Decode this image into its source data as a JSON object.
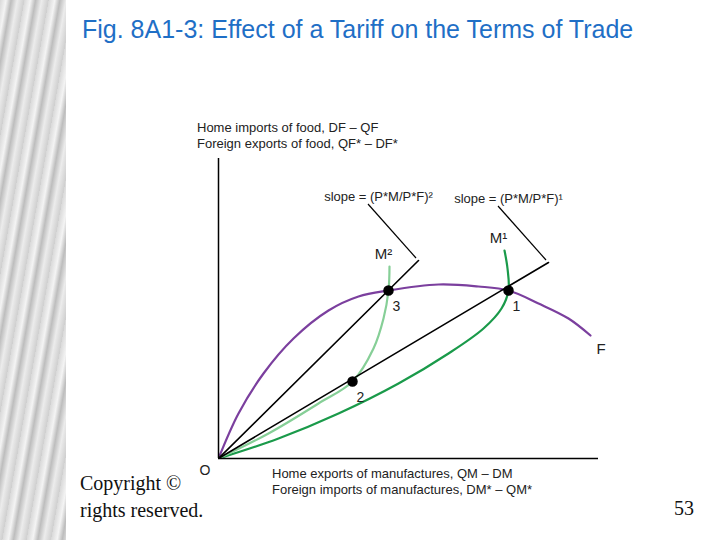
{
  "chart_data": {
    "type": "line",
    "title": "Fig. 8A1-3: Effect of a Tariff on the Terms of Trade",
    "x_label": [
      "Home exports of manufactures, QM – DM",
      "Foreign imports of manufactures, DM* – QM*"
    ],
    "y_label": [
      "Home imports of food, DF – QF",
      "Foreign exports of food, QF* – DF*"
    ],
    "xlim": [
      0,
      380
    ],
    "ylim": [
      0,
      300
    ],
    "xticks": [],
    "yticks": [],
    "tick_labels": false,
    "series": [
      {
        "name": "F",
        "type": "line",
        "color": "#7b3f9e",
        "x": [
          0,
          20,
          45,
          75,
          110,
          140,
          170,
          220,
          260,
          290,
          320,
          350,
          372
        ],
        "values": [
          0,
          45,
          85,
          120,
          148,
          162,
          168,
          174,
          172,
          168,
          155,
          140,
          123
        ]
      },
      {
        "name": "M¹",
        "type": "line",
        "color": "#1a9a4a",
        "x": [
          0,
          60,
          120,
          180,
          230,
          265,
          283,
          290,
          289,
          286
        ],
        "values": [
          0,
          20,
          45,
          75,
          105,
          130,
          150,
          168,
          190,
          208
        ]
      },
      {
        "name": "M²",
        "type": "line",
        "color": "#86cf97",
        "x": [
          0,
          50,
          100,
          134,
          155,
          165,
          170,
          171
        ],
        "values": [
          0,
          25,
          55,
          77,
          110,
          140,
          168,
          192
        ]
      },
      {
        "name": "slope = (P*M/P*F)¹",
        "type": "ray",
        "color": "#000000",
        "x": [
          0,
          330
        ],
        "values": [
          0,
          196
        ]
      },
      {
        "name": "slope = (P*M/P*F)²",
        "type": "ray",
        "color": "#000000",
        "x": [
          0,
          200
        ],
        "values": [
          0,
          198
        ]
      }
    ],
    "points": {
      "labels": [
        "1",
        "2",
        "3"
      ],
      "x": [
        290,
        134,
        170
      ],
      "y": [
        168,
        77,
        168
      ],
      "color": "#000000"
    },
    "annotations": [
      {
        "text": "O",
        "x": 0,
        "y": 0
      }
    ],
    "footer": [
      "Copyright ©",
      "rights reserved."
    ],
    "page": "53"
  }
}
